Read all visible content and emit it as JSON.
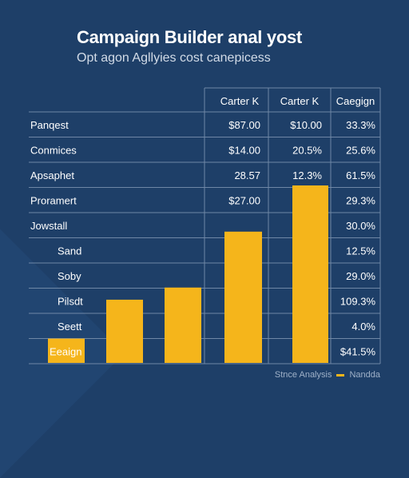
{
  "colors": {
    "background": "#1e3f68",
    "bar": "#f5b51b",
    "grid": "#6f87a6",
    "text": "#ffffff"
  },
  "chart_data": {
    "type": "bar",
    "title": "Campaign Builder anal yost",
    "subtitle": "Opt agon Agllyies cost canepicess",
    "columns": [
      "Carter K",
      "Carter K",
      "Caegign"
    ],
    "rows": [
      {
        "label": "Panqest",
        "cells": [
          "$87.00",
          "$10.00",
          "33.3%"
        ]
      },
      {
        "label": "Conmices",
        "cells": [
          "$14.00",
          "20.5%",
          "25.6%"
        ]
      },
      {
        "label": "Apsaphet",
        "cells": [
          "28.57",
          "12.3%",
          "61.5%"
        ]
      },
      {
        "label": "Proramert",
        "cells": [
          "$27.00",
          "",
          "29.3%"
        ]
      },
      {
        "label": "Jowstall",
        "cells": [
          "",
          "",
          "30.0%"
        ]
      },
      {
        "label": "Sand",
        "cells": [
          "",
          "",
          "12.5%"
        ]
      },
      {
        "label": "Soby",
        "cells": [
          "",
          "",
          "29.0%"
        ]
      },
      {
        "label": "Pilsdt",
        "cells": [
          "",
          "",
          "109.3%"
        ]
      },
      {
        "label": "Seett",
        "cells": [
          "",
          "",
          "4.0%"
        ]
      },
      {
        "label": "Eeaign",
        "cells": [
          "",
          "",
          "$41.5%"
        ]
      }
    ],
    "bars": [
      {
        "row_index": 9,
        "value": 1
      },
      {
        "row_index": 8,
        "value": 2.6
      },
      {
        "row_index": 7,
        "value": 3.1
      },
      {
        "row_index": 6,
        "value": 5.4
      },
      {
        "row_index": 5,
        "value": 7.3
      }
    ],
    "legend": [
      {
        "label": "Stnce Analysis"
      },
      {
        "label": "Nandda"
      }
    ]
  }
}
